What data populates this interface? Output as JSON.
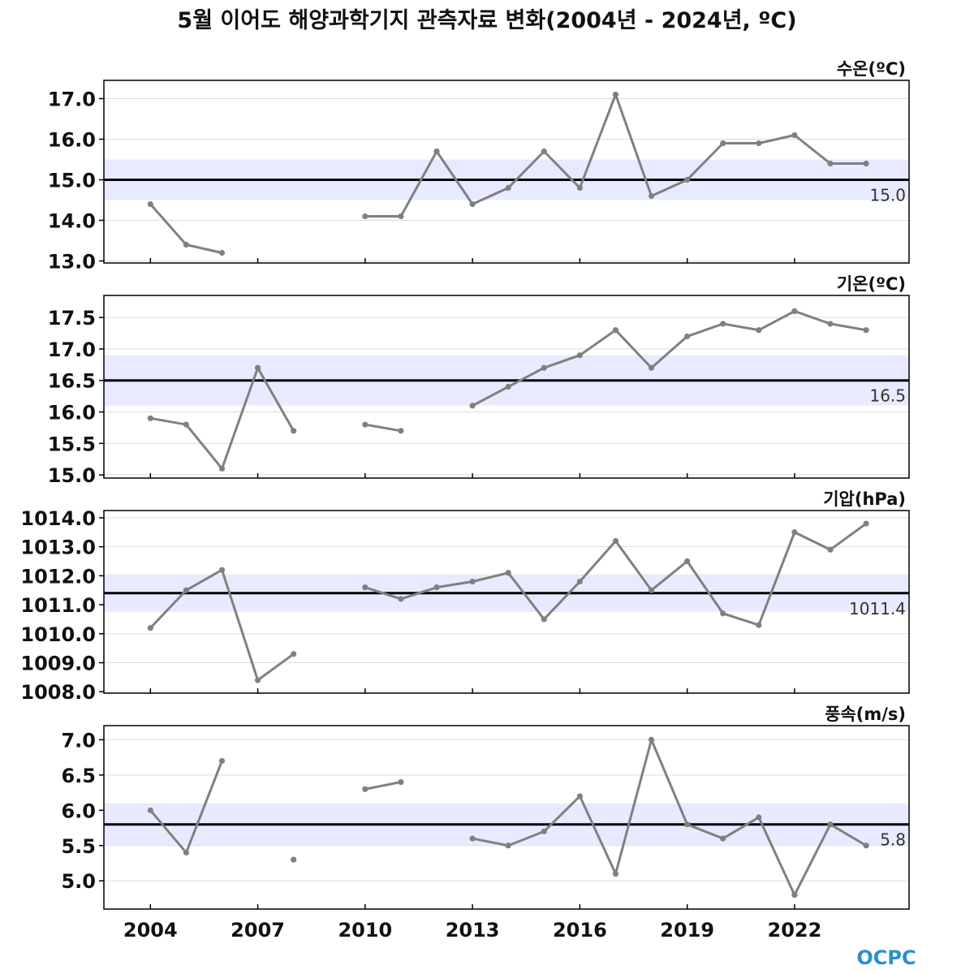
{
  "title": "5월 이어도 해양과학기지 관측자료 변화(2004년 - 2024년, ºC)",
  "logo": "OCPC",
  "colors": {
    "line": "#808080",
    "mean": "#000000",
    "band": "#e6e9ff",
    "grid": "#dddddd"
  },
  "chart_data": [
    {
      "type": "line",
      "label": "수온(ºC)",
      "years": [
        2004,
        2005,
        2006,
        2007,
        2008,
        2009,
        2010,
        2011,
        2012,
        2013,
        2014,
        2015,
        2016,
        2017,
        2018,
        2019,
        2020,
        2021,
        2022,
        2023,
        2024
      ],
      "values": [
        14.4,
        13.4,
        13.2,
        null,
        null,
        null,
        14.1,
        14.1,
        15.7,
        14.4,
        14.8,
        15.7,
        14.8,
        17.1,
        14.6,
        15.0,
        15.9,
        15.9,
        16.1,
        15.4,
        15.4
      ],
      "mean": 15.0,
      "mean_label": "15.0",
      "band": [
        14.5,
        15.5
      ],
      "ylim": [
        12.95,
        17.45
      ],
      "yticks": [
        13.0,
        14.0,
        15.0,
        16.0,
        17.0
      ],
      "ytick_labels": [
        "13.0",
        "14.0",
        "15.0",
        "16.0",
        "17.0"
      ]
    },
    {
      "type": "line",
      "label": "기온(ºC)",
      "years": [
        2004,
        2005,
        2006,
        2007,
        2008,
        2009,
        2010,
        2011,
        2012,
        2013,
        2014,
        2015,
        2016,
        2017,
        2018,
        2019,
        2020,
        2021,
        2022,
        2023,
        2024
      ],
      "values": [
        15.9,
        15.8,
        15.1,
        16.7,
        15.7,
        null,
        15.8,
        15.7,
        null,
        16.1,
        16.4,
        16.7,
        16.9,
        17.3,
        16.7,
        17.2,
        17.4,
        17.3,
        17.6,
        17.4,
        17.3
      ],
      "mean": 16.5,
      "mean_label": "16.5",
      "band": [
        16.1,
        16.9
      ],
      "ylim": [
        14.95,
        17.85
      ],
      "yticks": [
        15.0,
        15.5,
        16.0,
        16.5,
        17.0,
        17.5
      ],
      "ytick_labels": [
        "15.0",
        "15.5",
        "16.0",
        "16.5",
        "17.0",
        "17.5"
      ]
    },
    {
      "type": "line",
      "label": "기압(hPa)",
      "years": [
        2004,
        2005,
        2006,
        2007,
        2008,
        2009,
        2010,
        2011,
        2012,
        2013,
        2014,
        2015,
        2016,
        2017,
        2018,
        2019,
        2020,
        2021,
        2022,
        2023,
        2024
      ],
      "values": [
        1010.2,
        1011.5,
        1012.2,
        1008.4,
        1009.3,
        null,
        1011.6,
        1011.2,
        1011.6,
        1011.8,
        1012.1,
        1010.5,
        1011.8,
        1013.2,
        1011.5,
        1012.5,
        1010.7,
        1010.3,
        1013.5,
        1012.9,
        1013.8
      ],
      "mean": 1011.4,
      "mean_label": "1011.4",
      "band": [
        1010.75,
        1012.05
      ],
      "ylim": [
        1007.95,
        1014.25
      ],
      "yticks": [
        1008.0,
        1009.0,
        1010.0,
        1011.0,
        1012.0,
        1013.0,
        1014.0
      ],
      "ytick_labels": [
        "1008.0",
        "1009.0",
        "1010.0",
        "1011.0",
        "1012.0",
        "1013.0",
        "1014.0"
      ]
    },
    {
      "type": "line",
      "label": "풍속(m/s)",
      "years": [
        2004,
        2005,
        2006,
        2007,
        2008,
        2009,
        2010,
        2011,
        2012,
        2013,
        2014,
        2015,
        2016,
        2017,
        2018,
        2019,
        2020,
        2021,
        2022,
        2023,
        2024
      ],
      "values": [
        6.0,
        5.4,
        6.7,
        null,
        5.3,
        null,
        6.3,
        6.4,
        null,
        5.6,
        5.5,
        5.7,
        6.2,
        5.1,
        7.0,
        5.8,
        5.6,
        5.9,
        4.8,
        5.8,
        5.5
      ],
      "mean": 5.8,
      "mean_label": "5.8",
      "band": [
        5.5,
        6.1
      ],
      "ylim": [
        4.6,
        7.2
      ],
      "yticks": [
        5.0,
        5.5,
        6.0,
        6.5,
        7.0
      ],
      "ytick_labels": [
        "5.0",
        "5.5",
        "6.0",
        "6.5",
        "7.0"
      ]
    }
  ],
  "xaxis": {
    "xlim": [
      2002.7,
      2025.2
    ],
    "ticks": [
      2004,
      2007,
      2010,
      2013,
      2016,
      2019,
      2022
    ],
    "tick_labels": [
      "2004",
      "2007",
      "2010",
      "2013",
      "2016",
      "2019",
      "2022"
    ]
  }
}
